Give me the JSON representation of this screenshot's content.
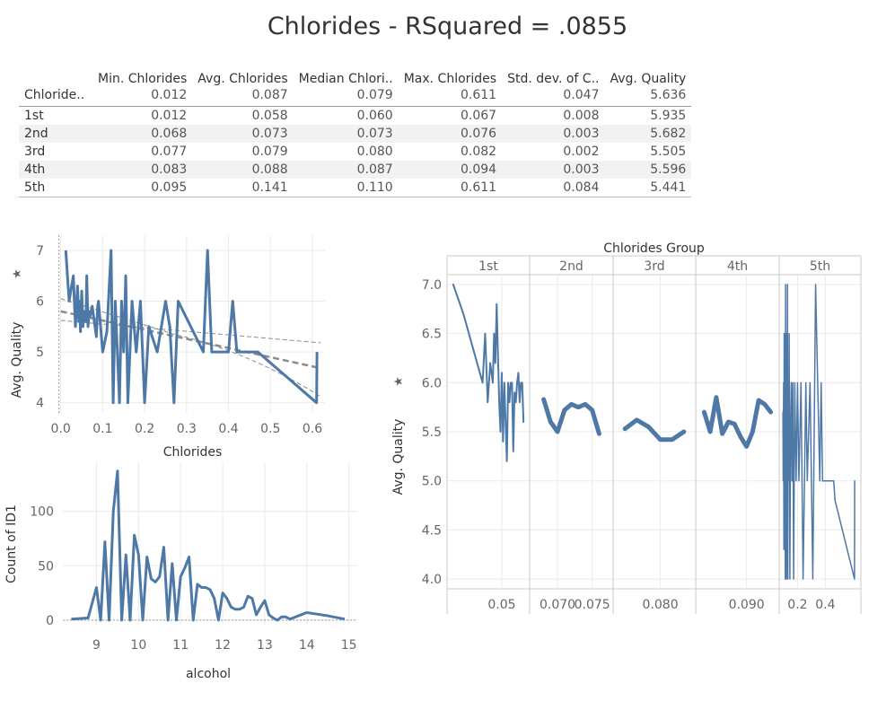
{
  "title": "Chlorides - RSquared = .0855",
  "summary_table": {
    "columns": [
      "Min. Chlorides",
      "Avg. Chlorides",
      "Median Chlori..",
      "Max. Chlorides",
      "Std. dev. of C..",
      "Avg. Quality"
    ],
    "row_header": "Chloride..",
    "overall": [
      "0.012",
      "0.087",
      "0.079",
      "0.611",
      "0.047",
      "5.636"
    ],
    "rows": [
      {
        "label": "1st",
        "values": [
          "0.012",
          "0.058",
          "0.060",
          "0.067",
          "0.008",
          "5.935"
        ]
      },
      {
        "label": "2nd",
        "values": [
          "0.068",
          "0.073",
          "0.073",
          "0.076",
          "0.003",
          "5.682"
        ]
      },
      {
        "label": "3rd",
        "values": [
          "0.077",
          "0.079",
          "0.080",
          "0.082",
          "0.002",
          "5.505"
        ]
      },
      {
        "label": "4th",
        "values": [
          "0.083",
          "0.088",
          "0.087",
          "0.094",
          "0.003",
          "5.596"
        ]
      },
      {
        "label": "5th",
        "values": [
          "0.095",
          "0.141",
          "0.110",
          "0.611",
          "0.084",
          "5.441"
        ]
      }
    ]
  },
  "colors": {
    "series": "#4e79a7",
    "trend": "#8c8c8c",
    "grid": "#ebebeb",
    "axis": "#c8c8c8"
  },
  "chart_data": [
    {
      "type": "line",
      "xlabel": "Chlorides",
      "ylabel": "Avg. Quality",
      "xlim": [
        -0.01,
        0.63
      ],
      "ylim": [
        3.8,
        7.3
      ],
      "xticks": [
        "0.0",
        "0.1",
        "0.2",
        "0.3",
        "0.4",
        "0.5",
        "0.6"
      ],
      "yticks": [
        "4",
        "5",
        "6",
        "7"
      ],
      "series": [
        {
          "x": [
            0.012,
            0.02,
            0.03,
            0.035,
            0.04,
            0.043,
            0.045,
            0.047,
            0.05,
            0.053,
            0.055,
            0.058,
            0.06,
            0.062,
            0.065,
            0.068,
            0.07,
            0.075,
            0.08,
            0.085,
            0.088,
            0.09,
            0.1,
            0.11,
            0.12,
            0.125,
            0.13,
            0.135,
            0.14,
            0.145,
            0.15,
            0.155,
            0.16,
            0.17,
            0.18,
            0.19,
            0.2,
            0.21,
            0.23,
            0.25,
            0.26,
            0.27,
            0.28,
            0.34,
            0.35,
            0.36,
            0.37,
            0.4,
            0.41,
            0.42,
            0.47,
            0.61,
            0.611
          ],
          "y": [
            7.0,
            6.0,
            6.5,
            5.5,
            6.3,
            5.6,
            6.0,
            5.4,
            6.2,
            5.5,
            5.8,
            5.7,
            5.6,
            6.5,
            5.5,
            5.8,
            5.7,
            5.9,
            5.6,
            5.3,
            5.9,
            6.0,
            5.0,
            5.4,
            7.0,
            4.0,
            6.0,
            5.0,
            4.0,
            6.0,
            5.0,
            6.5,
            4.0,
            6.0,
            5.0,
            6.0,
            4.0,
            5.5,
            5.0,
            6.0,
            5.5,
            4.0,
            6.0,
            5.0,
            7.0,
            5.0,
            5.0,
            5.0,
            6.0,
            5.0,
            5.0,
            4.0,
            5.0
          ]
        }
      ],
      "trend": {
        "r_squared": 0.0855,
        "x": [
          0.0,
          0.62
        ],
        "y": [
          5.8,
          4.68
        ]
      }
    },
    {
      "type": "line",
      "xlabel": "alcohol",
      "ylabel": "Count of ID1",
      "xlim": [
        8.2,
        15.2
      ],
      "ylim": [
        -5,
        145
      ],
      "xticks": [
        "9",
        "10",
        "11",
        "12",
        "13",
        "14",
        "15"
      ],
      "yticks": [
        "0",
        "50",
        "100"
      ],
      "series": [
        {
          "x": [
            8.4,
            8.8,
            9.0,
            9.1,
            9.2,
            9.3,
            9.4,
            9.5,
            9.6,
            9.7,
            9.8,
            9.9,
            10.0,
            10.1,
            10.2,
            10.3,
            10.4,
            10.5,
            10.6,
            10.7,
            10.8,
            10.9,
            11.0,
            11.1,
            11.2,
            11.3,
            11.4,
            11.5,
            11.6,
            11.7,
            11.8,
            11.9,
            12.0,
            12.1,
            12.2,
            12.3,
            12.4,
            12.5,
            12.6,
            12.7,
            12.8,
            12.9,
            13.0,
            13.1,
            13.2,
            13.3,
            13.4,
            13.5,
            13.6,
            13.8,
            14.0,
            14.5,
            14.9
          ],
          "y": [
            1,
            2,
            30,
            0,
            72,
            0,
            100,
            137,
            0,
            60,
            0,
            78,
            60,
            0,
            58,
            38,
            35,
            40,
            67,
            0,
            52,
            0,
            40,
            48,
            58,
            0,
            33,
            30,
            30,
            28,
            20,
            0,
            25,
            20,
            12,
            10,
            10,
            12,
            22,
            20,
            5,
            12,
            18,
            5,
            2,
            0,
            3,
            3,
            1,
            4,
            7,
            4,
            1
          ]
        }
      ]
    },
    {
      "type": "line",
      "title": "Chlorides Group",
      "ylabel": "Avg. Quality",
      "ylim": [
        3.9,
        7.1
      ],
      "yticks": [
        "7.0",
        "6.5",
        "6.0",
        "5.5",
        "5.0",
        "4.5",
        "4.0"
      ],
      "panes": [
        {
          "name": "1st",
          "xlim": [
            0.01,
            0.069
          ],
          "xticks": [
            "0.05"
          ],
          "tick_values": [
            0.05
          ],
          "x": [
            0.012,
            0.02,
            0.035,
            0.037,
            0.039,
            0.04,
            0.041,
            0.043,
            0.044,
            0.045,
            0.046,
            0.048,
            0.049,
            0.05,
            0.051,
            0.052,
            0.053,
            0.054,
            0.055,
            0.056,
            0.057,
            0.058,
            0.059,
            0.06,
            0.061,
            0.062,
            0.063,
            0.064,
            0.065,
            0.066,
            0.067
          ],
          "y": [
            7.0,
            6.7,
            6.0,
            6.5,
            5.8,
            6.0,
            6.2,
            6.0,
            6.5,
            6.2,
            6.8,
            5.8,
            5.5,
            6.1,
            5.4,
            6.0,
            5.6,
            5.2,
            6.0,
            5.8,
            6.0,
            6.0,
            5.3,
            5.9,
            5.8,
            6.0,
            6.1,
            5.8,
            6.0,
            6.0,
            5.6
          ]
        },
        {
          "name": "2nd",
          "xlim": [
            0.0665,
            0.0775
          ],
          "xticks": [
            "0.070",
            "0.075"
          ],
          "tick_values": [
            0.07,
            0.075
          ],
          "x": [
            0.068,
            0.069,
            0.07,
            0.071,
            0.072,
            0.073,
            0.074,
            0.075,
            0.076
          ],
          "y": [
            5.83,
            5.6,
            5.5,
            5.72,
            5.78,
            5.75,
            5.78,
            5.72,
            5.48
          ]
        },
        {
          "name": "3rd",
          "xlim": [
            0.0763,
            0.0827
          ],
          "xticks": [
            "0.080"
          ],
          "tick_values": [
            0.08
          ],
          "x": [
            0.077,
            0.078,
            0.079,
            0.08,
            0.081,
            0.082
          ],
          "y": [
            5.53,
            5.62,
            5.55,
            5.42,
            5.42,
            5.5
          ]
        },
        {
          "name": "4th",
          "xlim": [
            0.0822,
            0.0948
          ],
          "xticks": [
            "0.090"
          ],
          "tick_values": [
            0.09
          ],
          "x": [
            0.083,
            0.084,
            0.085,
            0.086,
            0.087,
            0.088,
            0.089,
            0.09,
            0.091,
            0.092,
            0.093,
            0.094
          ],
          "y": [
            5.7,
            5.5,
            5.85,
            5.48,
            5.6,
            5.58,
            5.45,
            5.35,
            5.5,
            5.82,
            5.78,
            5.7
          ]
        },
        {
          "name": "5th",
          "xlim": [
            0.094,
            0.63
          ],
          "xticks": [
            "0.2",
            "0.4"
          ],
          "tick_values": [
            0.2,
            0.4
          ],
          "x": [
            0.095,
            0.097,
            0.1,
            0.102,
            0.104,
            0.106,
            0.108,
            0.11,
            0.112,
            0.114,
            0.116,
            0.118,
            0.12,
            0.122,
            0.125,
            0.128,
            0.13,
            0.133,
            0.136,
            0.14,
            0.145,
            0.15,
            0.155,
            0.16,
            0.166,
            0.172,
            0.18,
            0.19,
            0.2,
            0.21,
            0.225,
            0.24,
            0.26,
            0.27,
            0.29,
            0.31,
            0.33,
            0.36,
            0.37,
            0.38,
            0.4,
            0.42,
            0.46,
            0.47,
            0.61,
            0.611
          ],
          "y": [
            5.7,
            5.0,
            6.0,
            4.3,
            6.5,
            5.0,
            5.5,
            6.0,
            4.0,
            7.0,
            5.0,
            6.5,
            4.0,
            6.0,
            5.0,
            7.0,
            4.0,
            6.0,
            5.0,
            6.5,
            4.0,
            5.5,
            6.0,
            5.0,
            6.0,
            4.0,
            6.0,
            5.0,
            6.0,
            5.0,
            6.0,
            4.0,
            6.0,
            5.0,
            6.0,
            4.0,
            7.0,
            5.0,
            6.0,
            5.0,
            5.0,
            5.0,
            5.0,
            4.8,
            4.0,
            5.0
          ]
        }
      ]
    }
  ]
}
